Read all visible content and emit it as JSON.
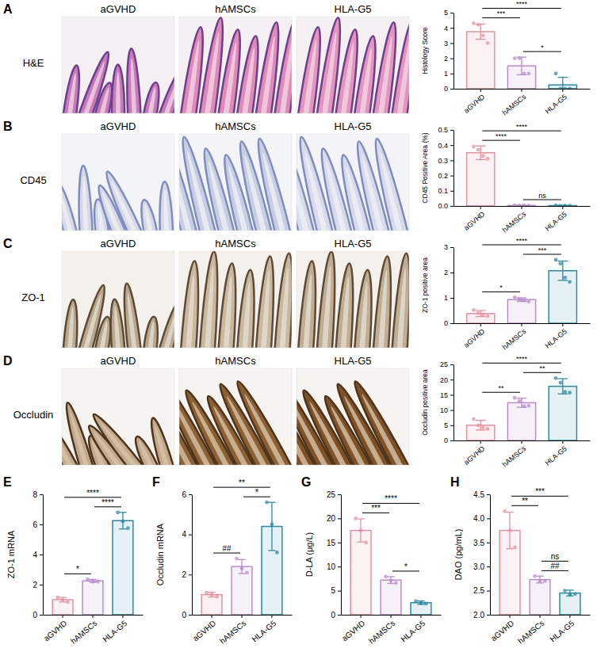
{
  "chart_data": [
    {
      "type": "bar",
      "panel": "A",
      "row_label": "H&E",
      "image_titles": [
        "aGVHD",
        "hAMSCs",
        "HLA-G5"
      ],
      "ylabel": "Histology Score",
      "categories": [
        "aGVHD",
        "hAMSCs",
        "HLA-G5"
      ],
      "values": [
        3.75,
        1.5,
        0.25
      ],
      "errors": [
        0.5,
        0.58,
        0.5
      ],
      "points": [
        [
          4.3,
          4.2,
          3.5,
          3.0
        ],
        [
          2,
          2,
          1,
          1
        ],
        [
          1,
          0,
          0,
          0
        ]
      ],
      "colors": [
        "#e8909f",
        "#b98ccc",
        "#2b8aa3"
      ],
      "ylim": [
        0,
        5
      ],
      "yticks": [
        0,
        1,
        2,
        3,
        4,
        5
      ],
      "annotations": [
        {
          "from": 0,
          "to": 1,
          "label": "***"
        },
        {
          "from": 1,
          "to": 2,
          "label": "*"
        },
        {
          "from": 0,
          "to": 2,
          "label": "****"
        }
      ]
    },
    {
      "type": "bar",
      "panel": "B",
      "row_label": "CD45",
      "image_titles": [
        "aGVHD",
        "hAMSCs",
        "HLA-G5"
      ],
      "ylabel": "CD45 Positive Area (%)",
      "categories": [
        "aGVHD",
        "hAMSCs",
        "HLA-G5"
      ],
      "values": [
        0.35,
        0.003,
        0.002
      ],
      "errors": [
        0.045,
        0.002,
        0.002
      ],
      "points": [
        [
          0.39,
          0.37,
          0.33,
          0.31
        ],
        [
          0.005,
          0.002,
          0.003,
          0.002
        ],
        [
          0.003,
          0.001,
          0.002,
          0.002
        ]
      ],
      "colors": [
        "#e8909f",
        "#b98ccc",
        "#2b8aa3"
      ],
      "ylim": [
        0,
        0.5
      ],
      "yticks": [
        {
          "value": 0,
          "label": "0.0"
        },
        0.1,
        0.2,
        0.3,
        0.4,
        0.5
      ],
      "annotations": [
        {
          "from": 0,
          "to": 1,
          "label": "****"
        },
        {
          "from": 1,
          "to": 2,
          "label": "ns"
        },
        {
          "from": 0,
          "to": 2,
          "label": "****"
        }
      ]
    },
    {
      "type": "bar",
      "panel": "C",
      "row_label": "ZO-1",
      "image_titles": [
        "aGVHD",
        "hAMSCs",
        "HLA-G5"
      ],
      "ylabel": "ZO-1 positive area",
      "categories": [
        "aGVHD",
        "hAMSCs",
        "HLA-G5"
      ],
      "values": [
        0.38,
        0.93,
        2.07
      ],
      "errors": [
        0.12,
        0.07,
        0.38
      ],
      "points": [
        [
          0.52,
          0.4,
          0.32,
          0.28
        ],
        [
          1.02,
          0.95,
          0.9,
          0.85
        ],
        [
          2.5,
          2.35,
          1.8,
          1.63
        ]
      ],
      "colors": [
        "#e8909f",
        "#b98ccc",
        "#2b8aa3"
      ],
      "ylim": [
        0,
        3
      ],
      "yticks": [
        0,
        1,
        2,
        3
      ],
      "annotations": [
        {
          "from": 0,
          "to": 1,
          "label": "*"
        },
        {
          "from": 1,
          "to": 2,
          "label": "***"
        },
        {
          "from": 0,
          "to": 2,
          "label": "****"
        }
      ]
    },
    {
      "type": "bar",
      "panel": "D",
      "row_label": "Occludin",
      "image_titles": [
        "aGVHD",
        "hAMSCs",
        "HLA-G5"
      ],
      "ylabel": "Occludin positive area",
      "categories": [
        "aGVHD",
        "hAMSCs",
        "HLA-G5"
      ],
      "values": [
        5.0,
        12.4,
        17.8
      ],
      "errors": [
        1.6,
        1.5,
        2.5
      ],
      "points": [
        [
          7,
          5,
          4.2,
          3.8
        ],
        [
          14,
          13,
          11.2,
          11.4
        ],
        [
          20.5,
          19,
          16,
          15.7
        ]
      ],
      "colors": [
        "#e8909f",
        "#b98ccc",
        "#2b8aa3"
      ],
      "ylim": [
        0,
        25
      ],
      "yticks": [
        0,
        5,
        10,
        15,
        20,
        25
      ],
      "annotations": [
        {
          "from": 0,
          "to": 1,
          "label": "**"
        },
        {
          "from": 1,
          "to": 2,
          "label": "**"
        },
        {
          "from": 0,
          "to": 2,
          "label": "****"
        }
      ]
    },
    {
      "type": "bar",
      "panel": "E",
      "ylabel": "ZO-1 mRNA",
      "categories": [
        "aGVHD",
        "hAMSCs",
        "HLA-G5"
      ],
      "values": [
        1.0,
        2.25,
        6.25
      ],
      "errors": [
        0.15,
        0.1,
        0.55
      ],
      "points": [
        [
          1.15,
          1.0,
          0.85
        ],
        [
          2.35,
          2.2,
          2.2
        ],
        [
          6.8,
          6.2,
          5.75
        ]
      ],
      "colors": [
        "#e8909f",
        "#b98ccc",
        "#2b8aa3"
      ],
      "ylim": [
        0,
        8
      ],
      "yticks": [
        0,
        2,
        4,
        6,
        8
      ],
      "annotations": [
        {
          "from": 0,
          "to": 1,
          "label": "*"
        },
        {
          "from": 1,
          "to": 2,
          "label": "****"
        },
        {
          "from": 0,
          "to": 2,
          "label": "****"
        }
      ]
    },
    {
      "type": "bar",
      "panel": "F",
      "ylabel": "Occludin mRNA",
      "categories": [
        "aGVHD",
        "hAMSCs",
        "HLA-G5"
      ],
      "values": [
        1.0,
        2.4,
        4.4
      ],
      "errors": [
        0.12,
        0.35,
        1.2
      ],
      "points": [
        [
          1.1,
          1.0,
          0.9
        ],
        [
          2.8,
          2.3,
          2.1
        ],
        [
          5.6,
          4.5,
          3.1
        ]
      ],
      "colors": [
        "#e8909f",
        "#b98ccc",
        "#2b8aa3"
      ],
      "ylim": [
        0,
        6
      ],
      "yticks": [
        0,
        2,
        4,
        6
      ],
      "annotations": [
        {
          "from": 0,
          "to": 1,
          "label": "##"
        },
        {
          "from": 1,
          "to": 2,
          "label": "*"
        },
        {
          "from": 0,
          "to": 2,
          "label": "**"
        }
      ]
    },
    {
      "type": "bar",
      "panel": "G",
      "ylabel": "D-LA (μg/L)",
      "categories": [
        "aGVHD",
        "hAMSCs",
        "HLA-G5"
      ],
      "values": [
        17.5,
        7.2,
        2.5
      ],
      "errors": [
        2.4,
        0.7,
        0.35
      ],
      "points": [
        [
          20,
          17.5,
          15
        ],
        [
          7.9,
          7.1,
          6.6
        ],
        [
          2.8,
          2.4,
          2.3
        ]
      ],
      "colors": [
        "#e8909f",
        "#b98ccc",
        "#2b8aa3"
      ],
      "ylim": [
        0,
        25
      ],
      "yticks": [
        0,
        5,
        10,
        15,
        20,
        25
      ],
      "annotations": [
        {
          "from": 0,
          "to": 1,
          "label": "***"
        },
        {
          "from": 1,
          "to": 2,
          "label": "*"
        },
        {
          "from": 0,
          "to": 2,
          "label": "****"
        }
      ]
    },
    {
      "type": "bar",
      "panel": "H",
      "ylabel": "DAO (pg/mL)",
      "categories": [
        "aGVHD",
        "hAMSCs",
        "HLA-G5"
      ],
      "values": [
        3.75,
        2.73,
        2.45
      ],
      "errors": [
        0.38,
        0.07,
        0.06
      ],
      "points": [
        [
          4.15,
          3.75,
          3.4
        ],
        [
          2.8,
          2.7,
          2.7
        ],
        [
          2.5,
          2.42,
          2.43
        ]
      ],
      "colors": [
        "#e8909f",
        "#b98ccc",
        "#2b8aa3"
      ],
      "ylim": [
        2.0,
        4.5
      ],
      "yticks": [
        {
          "value": 2.0,
          "label": "2.0"
        },
        2.5,
        {
          "value": 3.0,
          "label": "3.0"
        },
        3.5,
        {
          "value": 4.0,
          "label": "4.0"
        },
        4.5
      ],
      "annotations": [
        {
          "from": 0,
          "to": 1,
          "label": "**"
        },
        {
          "from": 1,
          "to": 2,
          "label": "##"
        },
        {
          "from": 1,
          "to": 2,
          "label": "ns"
        },
        {
          "from": 0,
          "to": 2,
          "label": "***"
        }
      ]
    }
  ]
}
